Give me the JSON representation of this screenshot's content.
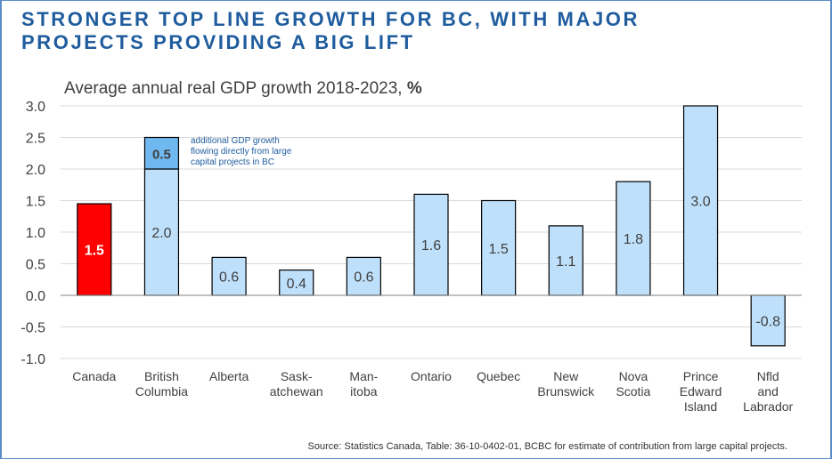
{
  "slide": {
    "headline_line1": "STRONGER TOP LINE GROWTH FOR BC, WITH MAJOR",
    "headline_line2": "PROJECTS PROVIDING A BIG LIFT",
    "source": "Source: Statistics Canada, Table: 36-10-0402-01, BCBC for estimate of contribution from large capital projects.",
    "colors": {
      "frame": "#5b8cc8",
      "headline": "#1f5c9e",
      "bar_fill": "#bfe0fb",
      "bar_stroke": "#000000",
      "highlight_fill": "#ff0000",
      "addon_fill": "#6fb8f0",
      "annotation": "#1f5c9e"
    }
  },
  "chart_data": {
    "type": "bar",
    "title": "Average annual real GDP growth 2018-2023, %",
    "title_main": "Average annual real GDP growth 2018-2023,",
    "title_unit": "%",
    "ylim": [
      -1.0,
      3.0
    ],
    "yticks": [
      "3.0",
      "2.5",
      "2.0",
      "1.5",
      "1.0",
      "0.5",
      "0.0",
      "-0.5",
      "-1.0"
    ],
    "ytick_values": [
      3.0,
      2.5,
      2.0,
      1.5,
      1.0,
      0.5,
      0.0,
      -0.5,
      -1.0
    ],
    "grid": true,
    "categories": [
      [
        "Canada"
      ],
      [
        "British",
        "Columbia"
      ],
      [
        "Alberta"
      ],
      [
        "Sask-",
        "atchewan"
      ],
      [
        "Man-",
        "itoba"
      ],
      [
        "Ontario"
      ],
      [
        "Quebec"
      ],
      [
        "New",
        "Brunswick"
      ],
      [
        "Nova",
        "Scotia"
      ],
      [
        "Prince",
        "Edward",
        "Island"
      ],
      [
        "Nfld",
        "and",
        "Labrador"
      ]
    ],
    "values": [
      1.45,
      2.0,
      0.6,
      0.4,
      0.6,
      1.6,
      1.5,
      1.1,
      1.8,
      3.0,
      -0.8
    ],
    "labels": [
      "1.5",
      "2.0",
      "0.6",
      "0.4",
      "0.6",
      "1.6",
      "1.5",
      "1.1",
      "1.8",
      "3.0",
      "-0.8"
    ],
    "highlight_index": 0,
    "addon": {
      "index": 1,
      "value": 0.5,
      "label": "0.5",
      "note": [
        "additional GDP growth",
        "flowing directly from large",
        "capital projects in BC"
      ]
    }
  }
}
